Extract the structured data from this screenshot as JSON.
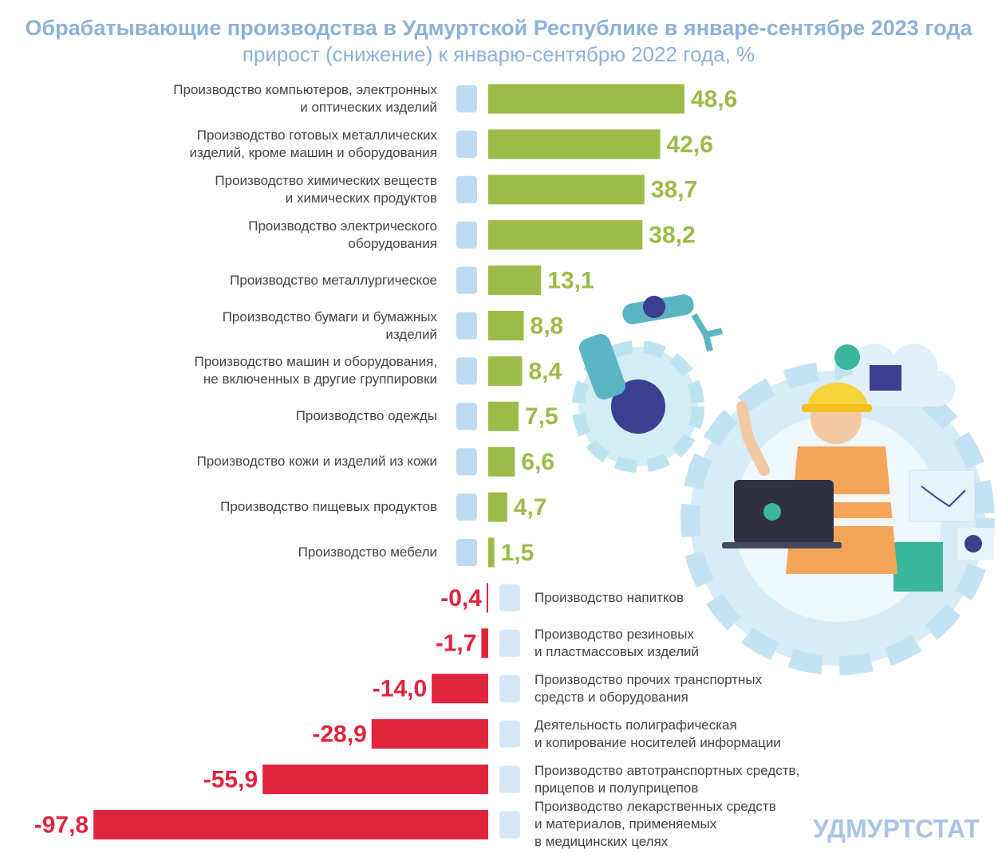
{
  "chart_data": {
    "type": "bar",
    "orientation": "horizontal",
    "title": "Обрабатывающие производства в Удмуртской Республике в январе-сентябре 2023 года",
    "subtitle": "прирост (снижение) к январю-сентябрю 2022 года, %",
    "brand": "УДМУРТСТАТ",
    "categories": [
      "Производство компьютеров, электронных\nи оптических изделий",
      "Производство готовых металлических\nизделий, кроме машин и оборудования",
      "Производство химических веществ\nи химических продуктов",
      "Производство электрического\nоборудования",
      "Производство металлургическое",
      "Производство бумаги и бумажных\nизделий",
      "Производство машин и оборудования,\nне включенных в другие группировки",
      "Производство одежды",
      "Производство кожи и изделий из кожи",
      "Производство пищевых продуктов",
      "Производство мебели",
      "Производство напитков",
      "Производство резиновых\nи пластмассовых изделий",
      "Производство прочих транспортных\nсредств и оборудования",
      "Деятельность полиграфическая\nи копирование носителей информации",
      "Производство автотранспортных средств,\nприцепов и полуприцепов",
      "Производство лекарственных средств\nи материалов, применяемых\nв медицинских целях"
    ],
    "values": [
      48.6,
      42.6,
      38.7,
      38.2,
      13.1,
      8.8,
      8.4,
      7.5,
      6.6,
      4.7,
      1.5,
      -0.4,
      -1.7,
      -14.0,
      -28.9,
      -55.9,
      -97.8
    ],
    "value_labels": [
      "48,6",
      "42,6",
      "38,7",
      "38,2",
      "13,1",
      "8,8",
      "8,4",
      "7,5",
      "6,6",
      "4,7",
      "1,5",
      "-0,4",
      "-1,7",
      "-14,0",
      "-28,9",
      "-55,9",
      "-97,8"
    ],
    "positive_color": "#9dbb48",
    "negative_color": "#e0253f",
    "xlim": [
      -100,
      50
    ]
  }
}
